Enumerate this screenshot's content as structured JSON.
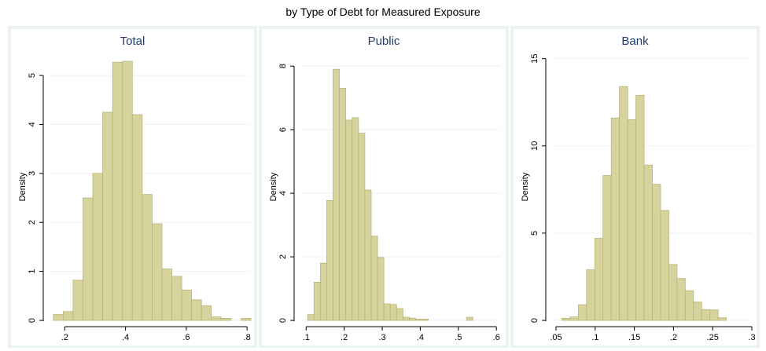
{
  "figure_title": "by Type of Debt for Measured Exposure",
  "colors": {
    "bar_fill": "#d6d39c",
    "bar_stroke": "#b9b57a",
    "panel_bg": "#ffffff",
    "frame_bg": "#eaf2f3",
    "title_color": "#1f3d6d",
    "grid": "#eef2f3"
  },
  "chart_data": [
    {
      "type": "bar",
      "subtype": "histogram",
      "title": "Total",
      "ylabel": "Density",
      "xlabel": "",
      "xlim": [
        0.15,
        0.81
      ],
      "ylim": [
        0,
        5.45
      ],
      "xticks": [
        0.2,
        0.4,
        0.6,
        0.8
      ],
      "xtick_labels": [
        ".2",
        ".4",
        ".6",
        ".8"
      ],
      "yticks": [
        0,
        1,
        2,
        3,
        4,
        5
      ],
      "ytick_labels": [
        "0",
        "1",
        "2",
        "3",
        "4",
        "5"
      ],
      "bin_start": 0.1625,
      "bin_width": 0.0325,
      "values": [
        0.12,
        0.18,
        0.82,
        2.5,
        3.0,
        4.25,
        5.27,
        5.29,
        4.2,
        2.57,
        1.97,
        1.05,
        0.9,
        0.62,
        0.42,
        0.3,
        0.07,
        0.04,
        0.0,
        0.04
      ]
    },
    {
      "type": "bar",
      "subtype": "histogram",
      "title": "Public",
      "ylabel": "Density",
      "xlabel": "",
      "xlim": [
        0.085,
        0.61
      ],
      "ylim": [
        0,
        8.4
      ],
      "xticks": [
        0.1,
        0.2,
        0.3,
        0.4,
        0.5,
        0.6
      ],
      "xtick_labels": [
        ".1",
        ".2",
        ".3",
        ".4",
        ".5",
        ".6"
      ],
      "yticks": [
        0,
        2,
        4,
        6,
        8
      ],
      "ytick_labels": [
        "0",
        "2",
        "4",
        "6",
        "8"
      ],
      "bin_start": 0.104,
      "bin_width": 0.0167,
      "values": [
        0.18,
        1.2,
        1.8,
        3.77,
        7.9,
        7.3,
        6.3,
        6.38,
        5.89,
        4.1,
        2.65,
        1.98,
        0.52,
        0.5,
        0.37,
        0.1,
        0.07,
        0.04,
        0.04,
        0.0,
        0.0,
        0.0,
        0.0,
        0.0,
        0.0,
        0.1,
        0.0
      ]
    },
    {
      "type": "bar",
      "subtype": "histogram",
      "title": "Bank",
      "ylabel": "Density",
      "xlabel": "",
      "xlim": [
        0.045,
        0.3
      ],
      "ylim": [
        0,
        15.3
      ],
      "xticks": [
        0.05,
        0.1,
        0.15,
        0.2,
        0.25,
        0.3
      ],
      "xtick_labels": [
        ".05",
        ".1",
        ".15",
        ".2",
        ".25",
        ".3"
      ],
      "yticks": [
        0,
        5,
        10,
        15
      ],
      "ytick_labels": [
        "0",
        "5",
        "10",
        "15"
      ],
      "bin_start": 0.0575,
      "bin_width": 0.0105,
      "values": [
        0.12,
        0.2,
        0.9,
        2.9,
        4.7,
        8.3,
        11.6,
        13.4,
        11.5,
        12.9,
        8.9,
        7.8,
        6.3,
        3.2,
        2.4,
        1.7,
        1.05,
        0.62,
        0.6,
        0.15
      ]
    }
  ]
}
